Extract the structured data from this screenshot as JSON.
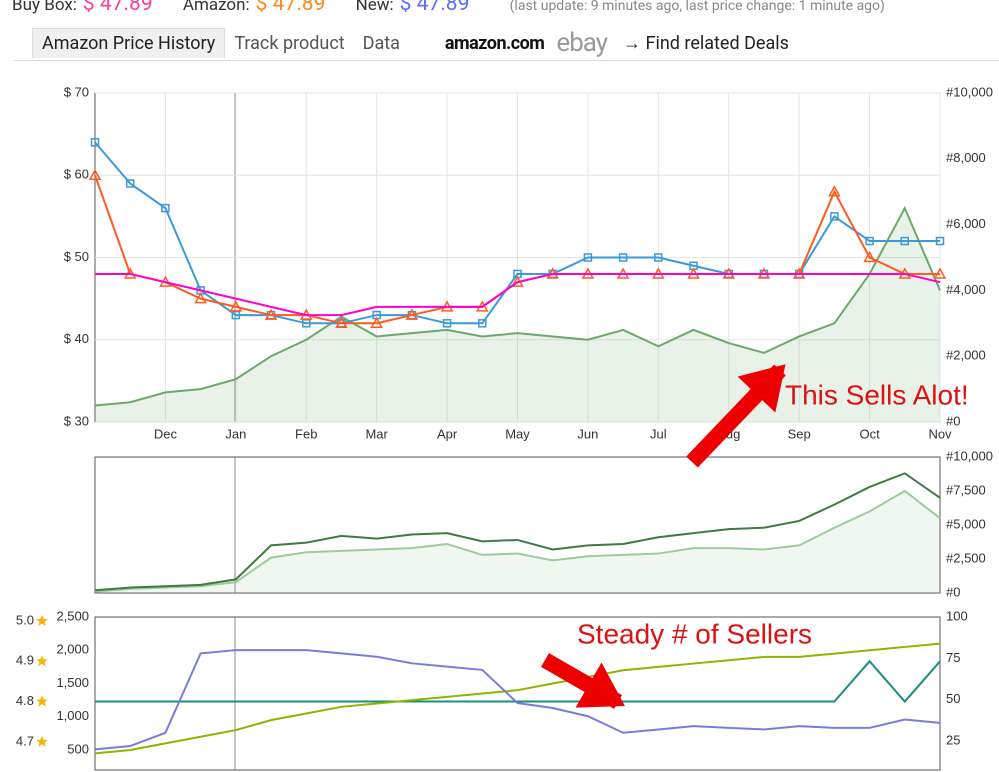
{
  "header": {
    "buy_box_label": "Buy Box:",
    "buy_box_price": "$ 47.89",
    "amazon_label": "Amazon:",
    "amazon_price": "$ 47.89",
    "new_label": "New:",
    "new_price": "$ 47.89",
    "note": "(last update: 9 minutes ago,  last price change: 1 minute ago)"
  },
  "tabs": [
    "Amazon Price History",
    "Track product",
    "Data"
  ],
  "links": {
    "amazon": "amazon.com",
    "ebay": "ebay",
    "deals": "→  Find related Deals"
  },
  "chart_data": [
    {
      "type": "line",
      "annotation": "This Sells Alot!",
      "grid": true,
      "categories": [
        null,
        null,
        "Dec",
        null,
        "Jan",
        null,
        "Feb",
        null,
        "Mar",
        null,
        "Apr",
        null,
        "May",
        null,
        "Jun",
        null,
        "Jul",
        null,
        "Aug",
        null,
        "Sep",
        null,
        "Oct",
        null,
        "Nov"
      ],
      "ylim": [
        30,
        70
      ],
      "yticks": [
        {
          "value": 30,
          "label": "$ 30"
        },
        {
          "value": 40,
          "label": "$ 40"
        },
        {
          "value": 50,
          "label": "$ 50"
        },
        {
          "value": 60,
          "label": "$ 60"
        },
        {
          "value": 70,
          "label": "$ 70"
        }
      ],
      "y2lim": [
        0,
        10000
      ],
      "y2ticks": [
        {
          "value": 0,
          "label": "#0"
        },
        {
          "value": 2000,
          "label": "#2,000"
        },
        {
          "value": 4000,
          "label": "#4,000"
        },
        {
          "value": 6000,
          "label": "#6,000"
        },
        {
          "value": 8000,
          "label": "#8,000"
        },
        {
          "value": 10000,
          "label": "#10,000"
        }
      ],
      "series": [
        {
          "color": "#6aa96a",
          "axis": "y2",
          "fill": true,
          "values": [
            500,
            600,
            900,
            1000,
            1300,
            2000,
            2500,
            3200,
            2600,
            2700,
            2800,
            2600,
            2700,
            2600,
            2500,
            2800,
            2300,
            2800,
            2400,
            2100,
            2600,
            3000,
            4500,
            6500,
            4000
          ]
        },
        {
          "color": "#3a9ad9",
          "marker": "square",
          "values": [
            64,
            59,
            56,
            46,
            43,
            43,
            42,
            42,
            43,
            43,
            42,
            42,
            48,
            48,
            50,
            50,
            50,
            49,
            48,
            48,
            48,
            55,
            52,
            52,
            52
          ]
        },
        {
          "color": "#ff5a1f",
          "marker": "triangle",
          "values": [
            60,
            48,
            47,
            45,
            44,
            43,
            43,
            42,
            42,
            43,
            44,
            44,
            47,
            48,
            48,
            48,
            48,
            48,
            48,
            48,
            48,
            58,
            50,
            48,
            48
          ]
        },
        {
          "color": "#f0c",
          "values": [
            48,
            48,
            47,
            46,
            45,
            44,
            43,
            43,
            44,
            44,
            44,
            44,
            47,
            48,
            48,
            48,
            48,
            48,
            48,
            48,
            48,
            48,
            48,
            48,
            47
          ]
        }
      ]
    },
    {
      "type": "line",
      "y2lim": [
        0,
        10000
      ],
      "y2ticks": [
        {
          "value": 0,
          "label": "#0"
        },
        {
          "value": 2500,
          "label": "#2,500"
        },
        {
          "value": 5000,
          "label": "#5,000"
        },
        {
          "value": 7500,
          "label": "#7,500"
        },
        {
          "value": 10000,
          "label": "#10,000"
        }
      ],
      "series": [
        {
          "color": "#9ccc9c",
          "axis": "y2",
          "fill": true,
          "values": [
            100,
            300,
            400,
            500,
            800,
            2600,
            3000,
            3100,
            3200,
            3300,
            3600,
            2800,
            2900,
            2400,
            2700,
            2800,
            2900,
            3300,
            3300,
            3200,
            3500,
            4800,
            6000,
            7500,
            5500
          ]
        },
        {
          "color": "#3f7a3f",
          "axis": "y2",
          "values": [
            200,
            400,
            500,
            600,
            1000,
            3500,
            3700,
            4200,
            4000,
            4300,
            4400,
            3800,
            3900,
            3200,
            3500,
            3600,
            4100,
            4400,
            4700,
            4800,
            5300,
            6500,
            7800,
            8800,
            7000
          ]
        }
      ]
    },
    {
      "type": "line",
      "annotation": "Steady # of Sellers",
      "ylim": [
        200,
        2500
      ],
      "yticks": [
        500,
        {
          "value": 1000,
          "label": "1,000"
        },
        {
          "value": 1500,
          "label": "1,500"
        },
        {
          "value": 2000,
          "label": "2,000"
        },
        {
          "value": 2500,
          "label": "2,500"
        }
      ],
      "y2lim": [
        7.5,
        100
      ],
      "y2ticks": [
        25,
        50,
        75,
        100
      ],
      "y3lim": [
        4.63,
        5.01
      ],
      "y3ticks": [
        4.7,
        4.8,
        4.9,
        {
          "value": 5,
          "label": "5.0"
        }
      ],
      "series": [
        {
          "color": "#1a8c80",
          "axis": "y3",
          "values": [
            4.8,
            4.8,
            4.8,
            4.8,
            4.8,
            4.8,
            4.8,
            4.8,
            4.8,
            4.8,
            4.8,
            4.8,
            4.8,
            4.8,
            4.8,
            4.8,
            4.8,
            4.8,
            4.8,
            4.8,
            4.8,
            4.8,
            4.9,
            4.8,
            4.9
          ]
        },
        {
          "color": "#8db600",
          "values": [
            450,
            500,
            600,
            700,
            800,
            950,
            1050,
            1150,
            1200,
            1250,
            1300,
            1350,
            1400,
            1500,
            1600,
            1700,
            1750,
            1800,
            1850,
            1900,
            1900,
            1950,
            2000,
            2050,
            2100
          ]
        },
        {
          "color": "#7b7bdc",
          "axis": "y2",
          "values": [
            20,
            22,
            30,
            78,
            80,
            80,
            80,
            78,
            76,
            72,
            70,
            68,
            48,
            45,
            40,
            30,
            32,
            34,
            33,
            32,
            34,
            33,
            33,
            38,
            36
          ]
        }
      ]
    }
  ]
}
